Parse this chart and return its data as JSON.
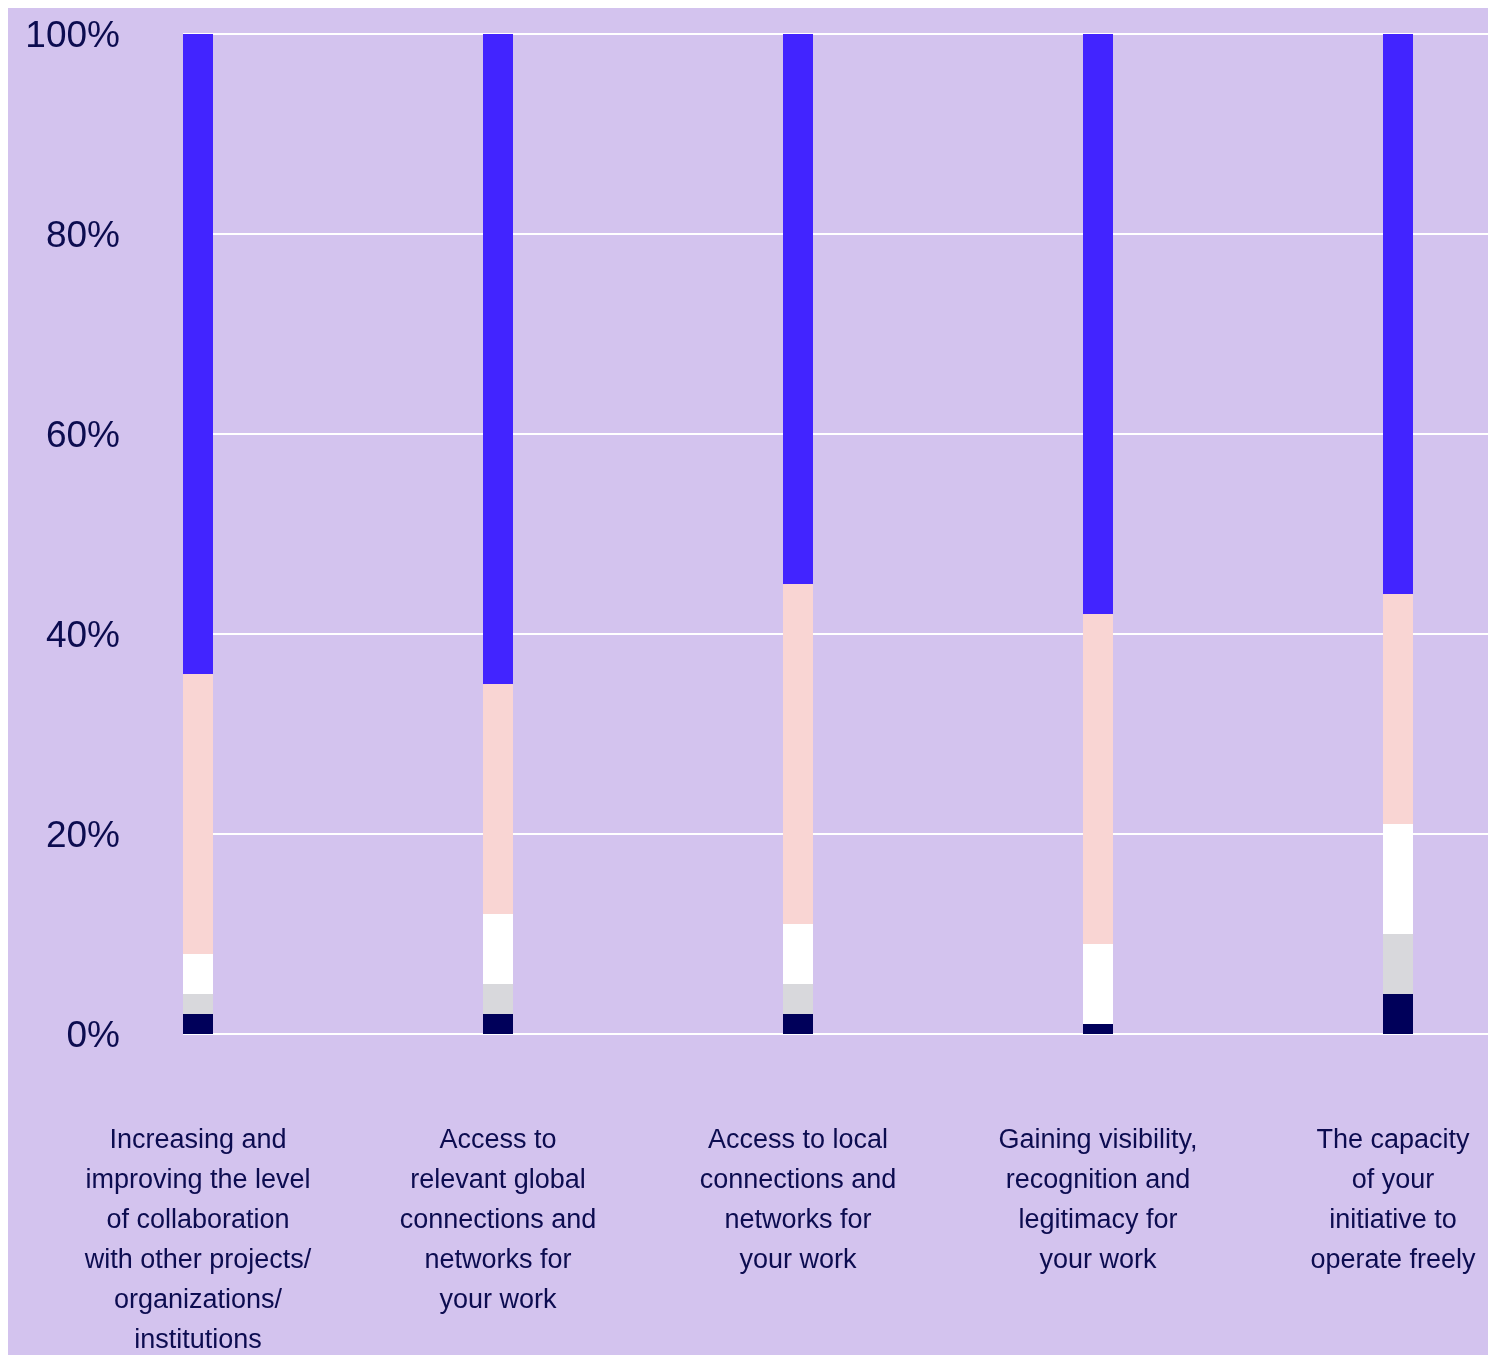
{
  "chart_data": {
    "type": "bar",
    "stacked": true,
    "categories": [
      "Increasing and\nimproving the level\nof collaboration\nwith other projects/\norganizations/\ninstitutions",
      "Access to\nrelevant global\nconnections and\nnetworks for\nyour work",
      "Access to local\nconnections and\nnetworks for\nyour work",
      "Gaining visibility,\nrecognition and\nlegitimacy for\nyour work",
      "The capacity\nof your\ninitiative to\noperate freely"
    ],
    "series": [
      {
        "color": "#00005a",
        "values": [
          2,
          2,
          2,
          1,
          4
        ]
      },
      {
        "color": "#d8d8dc",
        "values": [
          2,
          3,
          3,
          0,
          6
        ]
      },
      {
        "color": "#ffffff",
        "values": [
          4,
          7,
          6,
          8,
          11
        ]
      },
      {
        "color": "#f9d5d3",
        "values": [
          28,
          23,
          34,
          33,
          23
        ]
      },
      {
        "color": "#4224ff",
        "values": [
          64,
          65,
          55,
          58,
          56
        ]
      }
    ],
    "ylim": [
      0,
      100
    ],
    "yticks": [
      {
        "value": 0,
        "label": "0%"
      },
      {
        "value": 20,
        "label": "20%"
      },
      {
        "value": 40,
        "label": "40%"
      },
      {
        "value": 60,
        "label": "60%"
      },
      {
        "value": 80,
        "label": "80%"
      },
      {
        "value": 100,
        "label": "100%"
      }
    ],
    "grid": "y"
  }
}
